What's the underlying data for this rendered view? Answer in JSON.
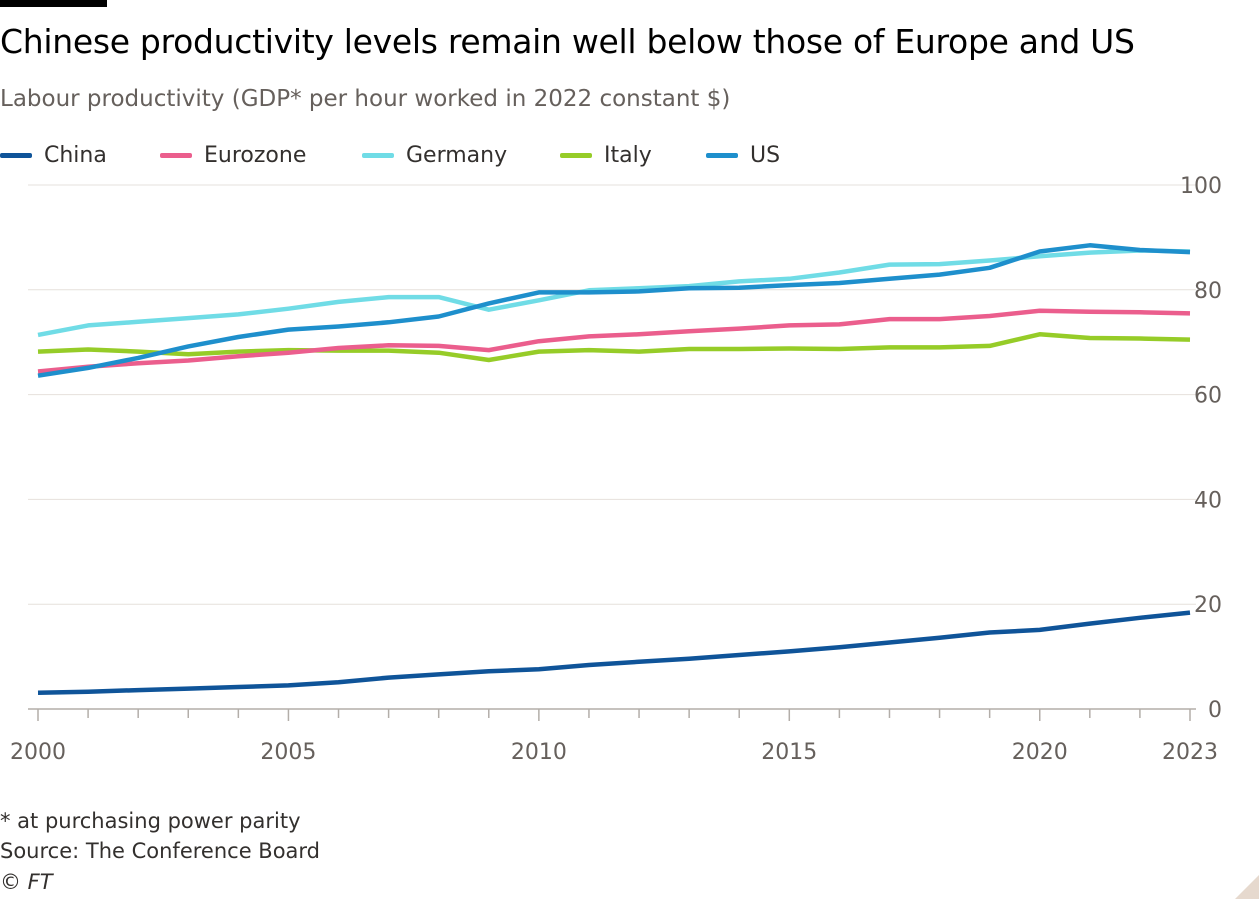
{
  "title": "Chinese productivity levels remain well below those of Europe and US",
  "subtitle": "Labour productivity (GDP* per hour worked in 2022 constant $)",
  "footnotes": {
    "note": "* at purchasing power parity",
    "source": "Source: The Conference Board",
    "credit": "© FT"
  },
  "legend": [
    {
      "label": "China",
      "color": "#0f5499"
    },
    {
      "label": "Eurozone",
      "color": "#eb5e8d"
    },
    {
      "label": "Germany",
      "color": "#70dce6"
    },
    {
      "label": "Italy",
      "color": "#96cc28"
    },
    {
      "label": "US",
      "color": "#1e8fcc"
    }
  ],
  "chart_data": {
    "type": "line",
    "title": "Chinese productivity levels remain well below those of Europe and US",
    "ylabel": "Labour productivity (GDP* per hour worked in 2022 constant $)",
    "xlabel": "",
    "x": [
      2000,
      2001,
      2002,
      2003,
      2004,
      2005,
      2006,
      2007,
      2008,
      2009,
      2010,
      2011,
      2012,
      2013,
      2014,
      2015,
      2016,
      2017,
      2018,
      2019,
      2020,
      2021,
      2022,
      2023
    ],
    "ylim": [
      0,
      100
    ],
    "y_ticks": [
      "100",
      "80",
      "60",
      "40",
      "20",
      "0"
    ],
    "x_tick_labels": [
      "2000",
      "2005",
      "2010",
      "2015",
      "2020",
      "2023"
    ],
    "y_axis_position": "right",
    "grid": true,
    "series": [
      {
        "name": "China",
        "color": "#0f5499",
        "values": [
          3.1,
          3.3,
          3.6,
          3.9,
          4.2,
          4.5,
          5.1,
          6.0,
          6.6,
          7.2,
          7.6,
          8.4,
          9.0,
          9.6,
          10.3,
          11.0,
          11.8,
          12.7,
          13.6,
          14.6,
          15.1,
          16.3,
          17.4,
          18.4
        ]
      },
      {
        "name": "Eurozone",
        "color": "#eb5e8d",
        "values": [
          64.4,
          65.3,
          66.0,
          66.5,
          67.3,
          68.0,
          68.9,
          69.4,
          69.3,
          68.5,
          70.2,
          71.1,
          71.5,
          72.1,
          72.6,
          73.2,
          73.4,
          74.4,
          74.4,
          75.0,
          76.0,
          75.8,
          75.7,
          75.5
        ]
      },
      {
        "name": "Germany",
        "color": "#70dce6",
        "values": [
          71.4,
          73.2,
          73.9,
          74.6,
          75.3,
          76.4,
          77.7,
          78.6,
          78.6,
          76.2,
          78.0,
          79.9,
          80.3,
          80.7,
          81.6,
          82.1,
          83.3,
          84.8,
          84.9,
          85.6,
          86.4,
          87.1,
          87.5,
          87.3
        ]
      },
      {
        "name": "Italy",
        "color": "#96cc28",
        "values": [
          68.2,
          68.6,
          68.2,
          67.7,
          68.2,
          68.5,
          68.4,
          68.4,
          68.0,
          66.6,
          68.2,
          68.5,
          68.2,
          68.7,
          68.7,
          68.8,
          68.7,
          69.0,
          69.0,
          69.3,
          71.5,
          70.8,
          70.7,
          70.5
        ]
      },
      {
        "name": "US",
        "color": "#1e8fcc",
        "values": [
          63.6,
          65.1,
          67.0,
          69.2,
          71.0,
          72.4,
          73.0,
          73.8,
          74.9,
          77.4,
          79.5,
          79.5,
          79.7,
          80.3,
          80.4,
          80.9,
          81.3,
          82.1,
          82.9,
          84.2,
          87.3,
          88.5,
          87.6,
          87.2
        ]
      }
    ]
  }
}
